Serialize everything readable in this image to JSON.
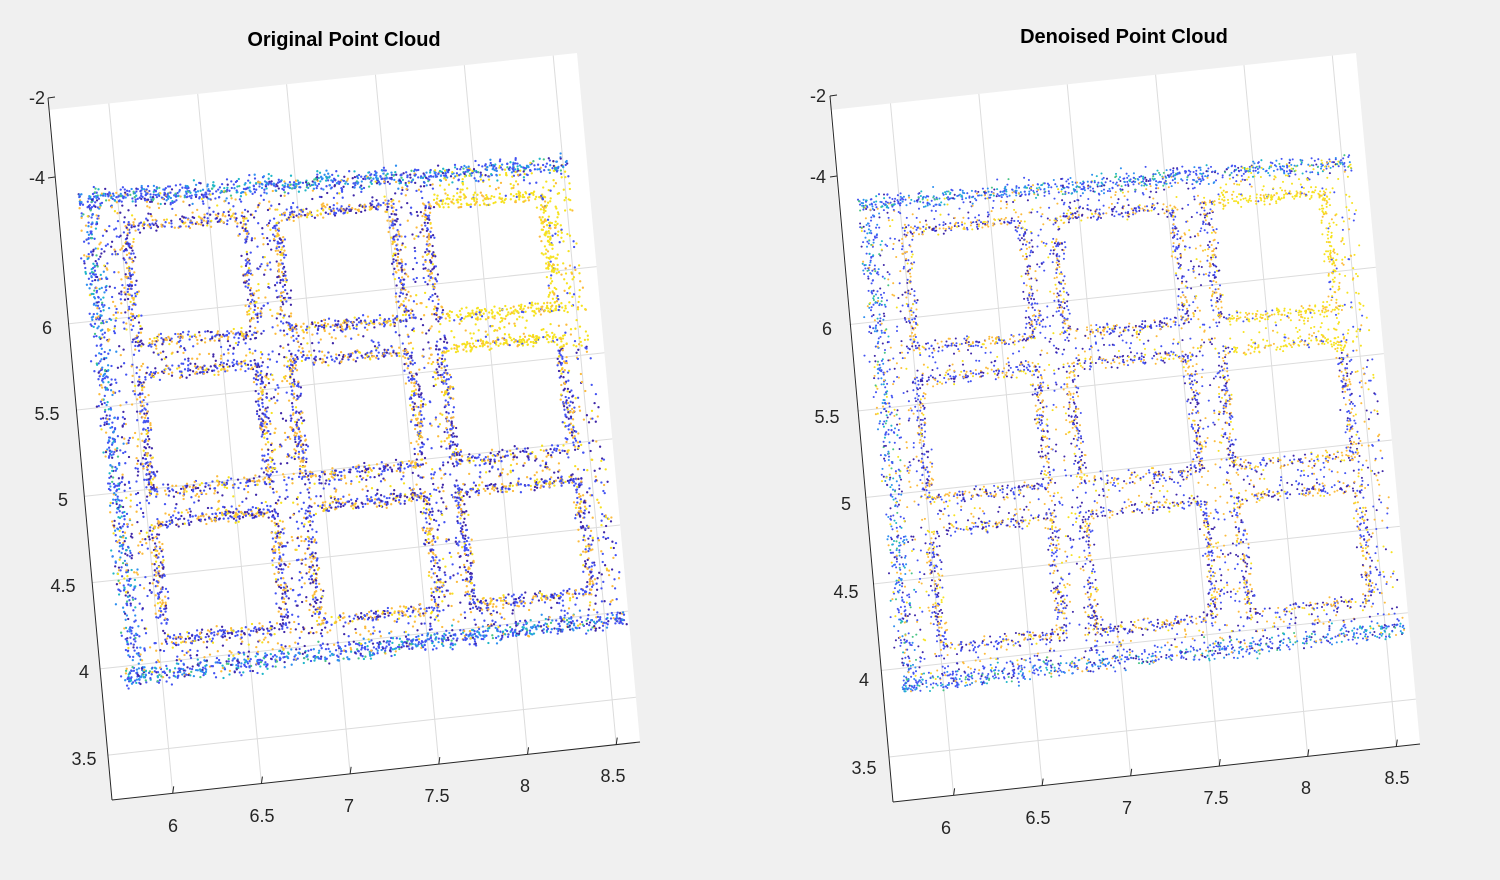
{
  "chart_data": [
    {
      "type": "scatter",
      "title": "Original Point Cloud",
      "x_ticks": [
        "6",
        "6.5",
        "7",
        "7.5",
        "8",
        "8.5"
      ],
      "y_ticks": [
        "3.5",
        "4",
        "4.5",
        "5",
        "5.5",
        "6"
      ],
      "z_ticks": [
        "-2",
        "-4"
      ],
      "xlim": [
        5.7,
        8.7
      ],
      "ylim": [
        3.3,
        6.3
      ],
      "grid": true,
      "colormap": [
        "#3e26a8",
        "#4353f2",
        "#2d8ff0",
        "#1fb6c8",
        "#49c585",
        "#b6c23a",
        "#fcbb3d",
        "#f6e21f"
      ],
      "structure": "3x3 grid of rounded square openings inside a square frame"
    },
    {
      "type": "scatter",
      "title": "Denoised Point Cloud",
      "x_ticks": [
        "6",
        "6.5",
        "7",
        "7.5",
        "8",
        "8.5"
      ],
      "y_ticks": [
        "3.5",
        "4",
        "4.5",
        "5",
        "5.5",
        "6"
      ],
      "z_ticks": [
        "-2",
        "-4"
      ],
      "xlim": [
        5.7,
        8.7
      ],
      "ylim": [
        3.3,
        6.3
      ],
      "grid": true,
      "colormap": [
        "#3e26a8",
        "#4353f2",
        "#2d8ff0",
        "#1fb6c8",
        "#49c585",
        "#b6c23a",
        "#fcbb3d",
        "#f6e21f"
      ],
      "structure": "3x3 grid of rounded square openings inside a square frame"
    }
  ]
}
